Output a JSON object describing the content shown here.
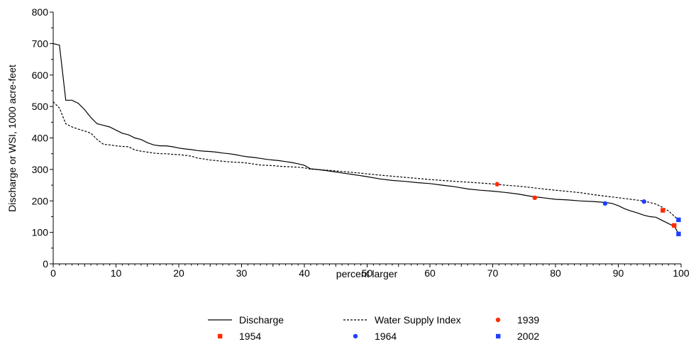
{
  "chart_data": {
    "type": "line",
    "xlabel": "percent larger",
    "ylabel": "Discharge or WSI, 1000 acre-feet",
    "xlim": [
      0,
      100
    ],
    "ylim": [
      0,
      800
    ],
    "x_ticks": [
      0,
      10,
      20,
      30,
      40,
      50,
      60,
      70,
      80,
      90,
      100
    ],
    "y_ticks": [
      0,
      100,
      200,
      300,
      400,
      500,
      600,
      700,
      800
    ],
    "grid": false,
    "legend_position": "bottom",
    "series": [
      {
        "name": "Discharge",
        "style": "solid",
        "color": "#000000",
        "x": [
          0,
          1,
          2,
          3,
          4,
          5,
          6,
          7,
          8,
          9,
          10,
          11,
          12,
          13,
          14,
          15,
          16,
          17,
          18,
          19,
          20,
          21,
          22,
          23,
          24,
          25,
          26,
          27,
          28,
          29,
          30,
          31,
          32,
          33,
          34,
          35,
          36,
          37,
          38,
          39,
          40,
          41,
          42,
          44,
          46,
          48,
          50,
          52,
          54,
          56,
          58,
          60,
          62,
          64,
          66,
          68,
          70,
          72,
          74,
          76,
          78,
          80,
          82,
          84,
          86,
          88,
          89,
          90,
          91,
          92,
          93,
          94,
          95,
          96,
          97,
          98,
          99,
          99.6
        ],
        "values": [
          700,
          695,
          520,
          520,
          510,
          490,
          465,
          445,
          440,
          435,
          425,
          415,
          410,
          400,
          395,
          385,
          378,
          375,
          375,
          372,
          368,
          365,
          363,
          360,
          358,
          357,
          355,
          352,
          350,
          347,
          343,
          340,
          338,
          335,
          332,
          330,
          328,
          325,
          322,
          318,
          313,
          302,
          300,
          295,
          289,
          283,
          277,
          270,
          265,
          262,
          258,
          255,
          250,
          245,
          238,
          234,
          231,
          227,
          222,
          215,
          210,
          205,
          203,
          200,
          198,
          195,
          192,
          185,
          175,
          168,
          162,
          155,
          150,
          148,
          138,
          128,
          118,
          95
        ]
      },
      {
        "name": "Water Supply Index",
        "style": "dashed",
        "color": "#000000",
        "x": [
          0,
          1,
          2,
          3,
          4,
          5,
          6,
          7,
          8,
          9,
          10,
          11,
          12,
          13,
          14,
          15,
          16,
          17,
          18,
          19,
          20,
          21,
          22,
          23,
          24,
          25,
          26,
          27,
          28,
          29,
          30,
          31,
          32,
          33,
          34,
          35,
          36,
          37,
          38,
          39,
          40,
          41,
          44,
          48,
          52,
          56,
          60,
          64,
          68,
          70,
          72,
          74,
          76,
          78,
          80,
          82,
          84,
          86,
          88,
          90,
          92,
          94,
          96,
          97,
          98,
          99,
          99.6
        ],
        "values": [
          515,
          495,
          445,
          435,
          428,
          422,
          415,
          395,
          380,
          378,
          375,
          373,
          372,
          362,
          358,
          355,
          352,
          350,
          350,
          348,
          347,
          345,
          342,
          336,
          333,
          330,
          328,
          326,
          324,
          323,
          322,
          320,
          317,
          314,
          313,
          312,
          310,
          309,
          308,
          307,
          305,
          301,
          297,
          290,
          282,
          275,
          268,
          262,
          257,
          254,
          250,
          247,
          243,
          238,
          234,
          230,
          226,
          220,
          215,
          210,
          205,
          200,
          190,
          180,
          168,
          150,
          140
        ]
      },
      {
        "name": "1939",
        "style": "marker",
        "marker": "circle",
        "color": "#ff2a00",
        "x": [
          70.7,
          76.7
        ],
        "values": [
          253,
          210
        ]
      },
      {
        "name": "1954",
        "style": "marker",
        "marker": "square",
        "color": "#ff2a00",
        "x": [
          97.1,
          98.9
        ],
        "values": [
          170,
          122
        ]
      },
      {
        "name": "1964",
        "style": "marker",
        "marker": "circle",
        "color": "#1f3fff",
        "x": [
          87.9,
          94.1
        ],
        "values": [
          192,
          198
        ]
      },
      {
        "name": "2002",
        "style": "marker",
        "marker": "square",
        "color": "#1f3fff",
        "x": [
          99.6,
          99.6
        ],
        "values": [
          140,
          95
        ]
      }
    ]
  }
}
